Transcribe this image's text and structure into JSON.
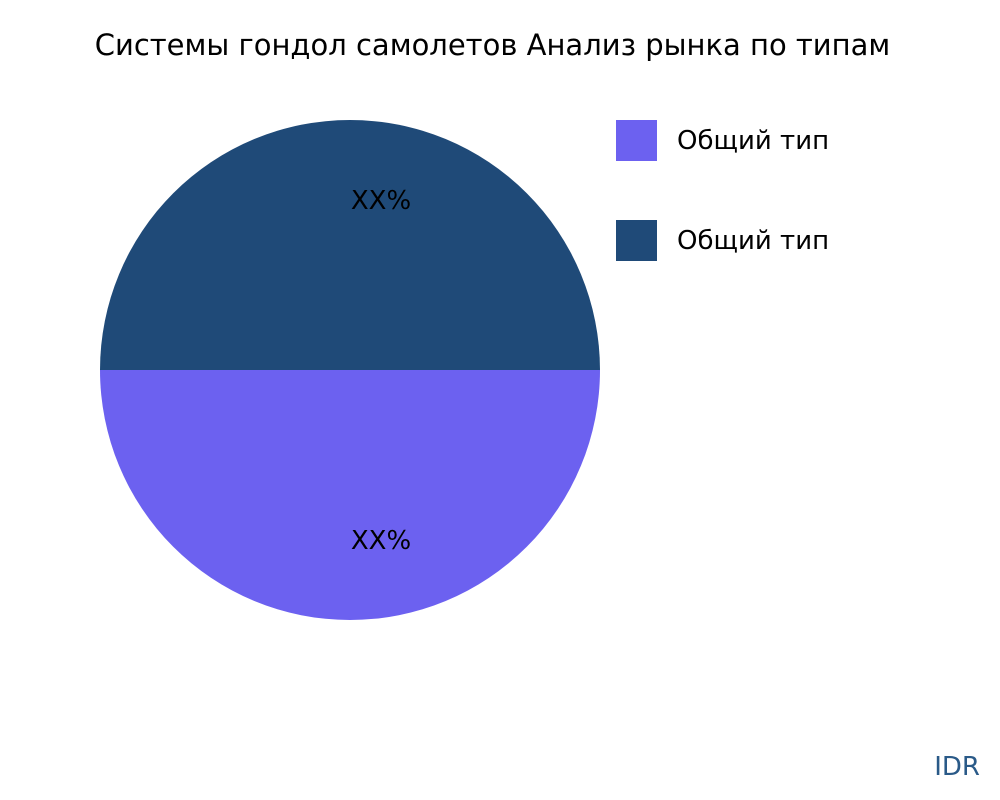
{
  "chart_data": {
    "type": "pie",
    "title": "Системы гондол самолетов Анализ рынка по типам",
    "slices": [
      {
        "name": "Общий тип",
        "value": 50,
        "label": "XX%",
        "color": "#6c61f0"
      },
      {
        "name": "Общий тип",
        "value": 50,
        "label": "XX%",
        "color": "#1f4a78"
      }
    ],
    "legend_position": "right"
  },
  "watermark": "IDR"
}
